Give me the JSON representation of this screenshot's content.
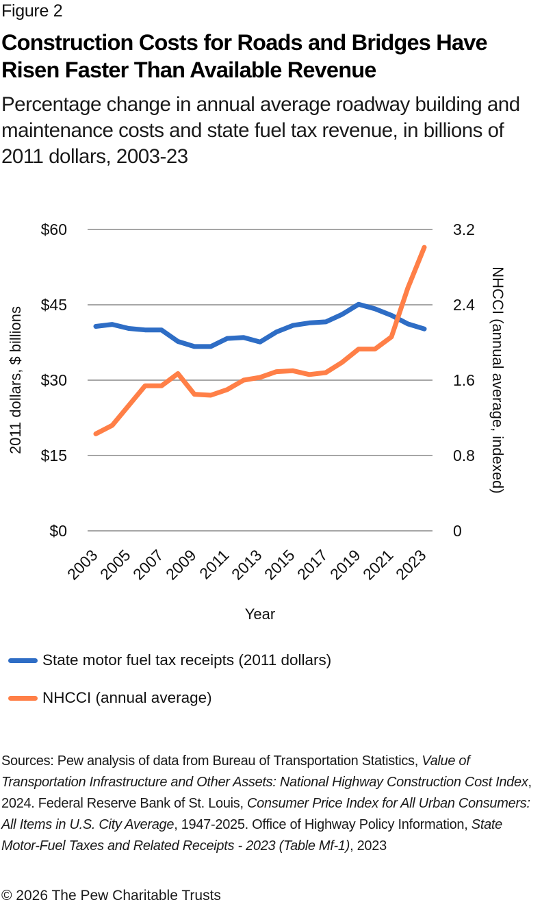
{
  "figure_label": "Figure 2",
  "title": "Construction Costs for Roads and Bridges Have Risen Faster Than Available Revenue",
  "subtitle": "Percentage change in annual average roadway building and maintenance costs and state fuel tax revenue, in billions of 2011 dollars, 2003-23",
  "colors": {
    "fuel_tax": "#2E6DC5",
    "nhcci": "#FF7F47",
    "gridline": "#A6A6A6"
  },
  "chart_data": {
    "type": "line",
    "title": "Construction Costs for Roads and Bridges Have Risen Faster Than Available Revenue",
    "xlabel": "Year",
    "ylabel": "2011 dollars, $ billions",
    "y2label": "NHCCI (annual average, indexed)",
    "x": [
      2003,
      2004,
      2005,
      2006,
      2007,
      2008,
      2009,
      2010,
      2011,
      2012,
      2013,
      2014,
      2015,
      2016,
      2017,
      2018,
      2019,
      2020,
      2021,
      2022,
      2023
    ],
    "x_tick_labels": [
      "2003",
      "2005",
      "2007",
      "2009",
      "2011",
      "2013",
      "2015",
      "2017",
      "2019",
      "2021",
      "2023"
    ],
    "ylim": [
      0,
      60
    ],
    "y_ticks": [
      0,
      15,
      30,
      45,
      60
    ],
    "y_tick_labels": [
      "$0",
      "$15",
      "$30",
      "$45",
      "$60"
    ],
    "y2lim": [
      0,
      3.2
    ],
    "y2_ticks": [
      0,
      0.8,
      1.6,
      2.4,
      3.2
    ],
    "y2_tick_labels": [
      "0",
      "0.8",
      "1.6",
      "2.4",
      "3.2"
    ],
    "grid": true,
    "legend_position": "bottom-left",
    "series": [
      {
        "name": "State motor fuel tax receipts (2011 dollars)",
        "axis": "left",
        "values": [
          40.7,
          41.1,
          40.3,
          40.0,
          40.0,
          37.7,
          36.7,
          36.7,
          38.3,
          38.5,
          37.6,
          39.6,
          40.9,
          41.4,
          41.6,
          43.1,
          45.1,
          44.2,
          42.9,
          41.2,
          40.2
        ]
      },
      {
        "name": "NHCCI (annual average)",
        "axis": "right",
        "values": [
          1.03,
          1.12,
          1.33,
          1.54,
          1.54,
          1.67,
          1.45,
          1.44,
          1.5,
          1.6,
          1.63,
          1.69,
          1.7,
          1.66,
          1.68,
          1.79,
          1.93,
          1.93,
          2.06,
          2.58,
          3.01
        ]
      }
    ]
  },
  "legend": {
    "items": [
      {
        "label": "State motor fuel tax receipts (2011 dollars)",
        "series": "fuel_tax"
      },
      {
        "label": "NHCCI (annual average)",
        "series": "nhcci"
      }
    ]
  },
  "sources": {
    "segments": [
      {
        "text": "Sources: Pew analysis of data from Bureau of Transportation Statistics, ",
        "italic": false
      },
      {
        "text": "Value of Transportation Infrastructure and Other Assets: National Highway Construction Cost Index",
        "italic": true
      },
      {
        "text": ", 2024. Federal Reserve Bank of St. Louis, ",
        "italic": false
      },
      {
        "text": "Consumer Price Index for All Urban Consumers: All Items in U.S. City Average",
        "italic": true
      },
      {
        "text": ", 1947-2025. Office of Highway Policy Information, ",
        "italic": false
      },
      {
        "text": "State Motor-Fuel Taxes and Related Receipts - 2023 (Table Mf-1)",
        "italic": true
      },
      {
        "text": ", 2023",
        "italic": false
      }
    ]
  },
  "copyright": "© 2026 The Pew Charitable Trusts"
}
